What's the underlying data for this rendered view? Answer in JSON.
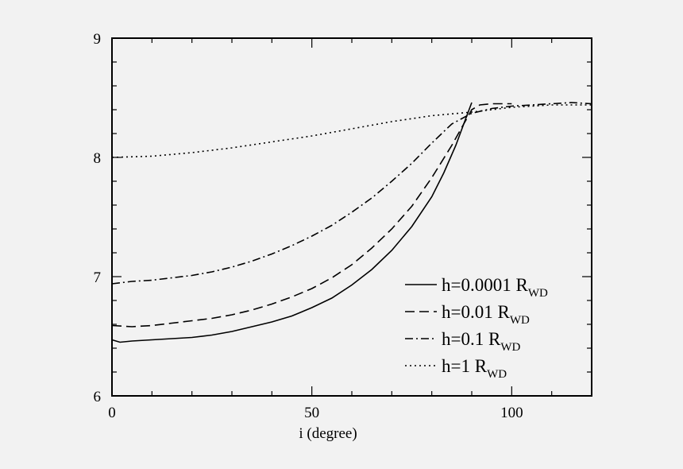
{
  "chart_data": {
    "type": "line",
    "title": "",
    "xlabel": "i (degree)",
    "ylabel": "",
    "xlim": [
      0,
      120
    ],
    "ylim": [
      6,
      9
    ],
    "x_ticks": [
      0,
      50,
      100
    ],
    "x_tick_labels": [
      "0",
      "50",
      "100"
    ],
    "y_ticks": [
      6,
      7,
      8,
      9
    ],
    "y_tick_labels": [
      "6",
      "7",
      "8",
      "9"
    ],
    "grid": false,
    "legend_position": "bottom-right",
    "series": [
      {
        "name": "h=0.0001 R",
        "name_sub": "WD",
        "style": "solid",
        "x": [
          0,
          2,
          5,
          10,
          15,
          20,
          25,
          30,
          35,
          40,
          45,
          50,
          55,
          60,
          65,
          70,
          75,
          80,
          83,
          86,
          88,
          90
        ],
        "y": [
          6.47,
          6.45,
          6.46,
          6.47,
          6.48,
          6.49,
          6.51,
          6.54,
          6.58,
          6.62,
          6.67,
          6.74,
          6.82,
          6.93,
          7.06,
          7.22,
          7.42,
          7.67,
          7.87,
          8.1,
          8.28,
          8.46
        ]
      },
      {
        "name": "h=0.01 R",
        "name_sub": "WD",
        "style": "dashed",
        "x": [
          0,
          5,
          10,
          15,
          20,
          25,
          30,
          35,
          40,
          45,
          50,
          55,
          60,
          65,
          70,
          75,
          80,
          85,
          88,
          90,
          92,
          95,
          100
        ],
        "y": [
          6.59,
          6.58,
          6.59,
          6.61,
          6.63,
          6.65,
          6.68,
          6.72,
          6.77,
          6.83,
          6.9,
          6.99,
          7.1,
          7.24,
          7.4,
          7.59,
          7.83,
          8.1,
          8.28,
          8.4,
          8.44,
          8.45,
          8.45
        ]
      },
      {
        "name": "h=0.1 R",
        "name_sub": "WD",
        "style": "dashdot",
        "x": [
          0,
          5,
          10,
          15,
          20,
          25,
          30,
          35,
          40,
          45,
          50,
          55,
          60,
          65,
          70,
          75,
          80,
          85,
          90,
          95,
          100,
          105,
          110,
          115,
          120
        ],
        "y": [
          6.94,
          6.96,
          6.97,
          6.99,
          7.01,
          7.04,
          7.08,
          7.13,
          7.19,
          7.26,
          7.34,
          7.43,
          7.54,
          7.66,
          7.8,
          7.95,
          8.12,
          8.28,
          8.37,
          8.41,
          8.43,
          8.44,
          8.45,
          8.46,
          8.45
        ]
      },
      {
        "name": "h=1 R",
        "name_sub": "WD",
        "style": "dotted",
        "x": [
          0,
          10,
          20,
          30,
          40,
          50,
          60,
          70,
          80,
          90,
          100,
          110,
          120
        ],
        "y": [
          8.0,
          8.01,
          8.04,
          8.08,
          8.13,
          8.18,
          8.24,
          8.3,
          8.35,
          8.38,
          8.42,
          8.44,
          8.44
        ]
      }
    ]
  }
}
